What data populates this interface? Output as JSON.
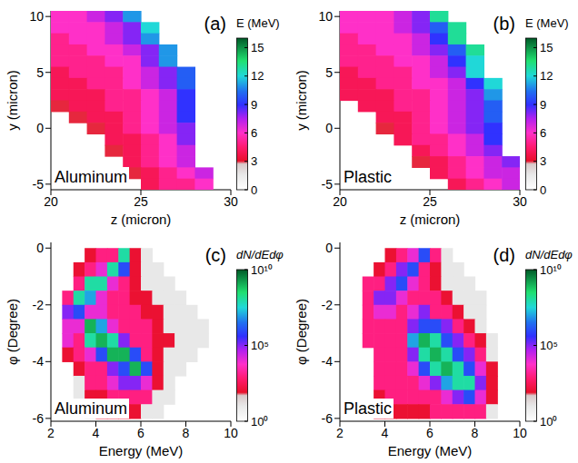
{
  "chart_data": [
    {
      "type": "heatmap",
      "panel_label": "(a)",
      "annotation": "Aluminum",
      "x_label": "z (micron)",
      "y_label": "y (micron)",
      "xlim": [
        20,
        30
      ],
      "xticks": [
        20,
        25,
        30
      ],
      "ylim": [
        -5.5,
        10.5
      ],
      "yticks": [
        10,
        5,
        0,
        -5
      ],
      "x": [
        20.5,
        21.5,
        22.5,
        23.5,
        24.5,
        25.5,
        26.5,
        27.5,
        28.5,
        29.5
      ],
      "y": [
        10,
        9,
        8,
        7,
        6,
        5,
        4,
        3,
        2,
        1,
        0,
        -1,
        -2,
        -3,
        -4,
        -5
      ],
      "values": [
        [
          6,
          6,
          7,
          8,
          11,
          null,
          null,
          null,
          null,
          null
        ],
        [
          6,
          6,
          6,
          7,
          8,
          12,
          null,
          null,
          null,
          null
        ],
        [
          5,
          6,
          6,
          7,
          8,
          11,
          null,
          null,
          null,
          null
        ],
        [
          5,
          5,
          6,
          6,
          7,
          8,
          11,
          null,
          null,
          null
        ],
        [
          5,
          5,
          5,
          6,
          6,
          8,
          11,
          null,
          null,
          null
        ],
        [
          4,
          5,
          5,
          5,
          6,
          7,
          8,
          10,
          null,
          null
        ],
        [
          4,
          4,
          5,
          5,
          6,
          7,
          8,
          10,
          null,
          null
        ],
        [
          4,
          4,
          4,
          5,
          5,
          6,
          7,
          9,
          null,
          null
        ],
        [
          3,
          4,
          4,
          5,
          5,
          6,
          7,
          9,
          null,
          null
        ],
        [
          null,
          3,
          4,
          4,
          5,
          6,
          7,
          9,
          null,
          null
        ],
        [
          null,
          null,
          3,
          4,
          5,
          6,
          7,
          8,
          null,
          null
        ],
        [
          null,
          null,
          null,
          4,
          4,
          5,
          6,
          8,
          null,
          null
        ],
        [
          null,
          null,
          null,
          3,
          4,
          5,
          6,
          7,
          null,
          null
        ],
        [
          null,
          null,
          null,
          null,
          4,
          5,
          6,
          7,
          null,
          null
        ],
        [
          null,
          null,
          null,
          null,
          3,
          4,
          5,
          6,
          7,
          null
        ],
        [
          null,
          null,
          null,
          null,
          null,
          4,
          5,
          5,
          6,
          null
        ]
      ],
      "colorbar": {
        "label": "E (MeV)",
        "range": [
          0,
          16
        ],
        "ticks": [
          0,
          3,
          6,
          9,
          12,
          15
        ]
      }
    },
    {
      "type": "heatmap",
      "panel_label": "(b)",
      "annotation": "Plastic",
      "x_label": "z (micron)",
      "y_label": "y (micron)",
      "xlim": [
        20,
        30
      ],
      "xticks": [
        20,
        25,
        30
      ],
      "ylim": [
        -5.5,
        10.5
      ],
      "yticks": [
        10,
        5,
        0,
        -5
      ],
      "x": [
        20.5,
        21.5,
        22.5,
        23.5,
        24.5,
        25.5,
        26.5,
        27.5,
        28.5,
        29.5
      ],
      "y": [
        10,
        9,
        8,
        7,
        6,
        5,
        4,
        3,
        2,
        1,
        0,
        -1,
        -2,
        -3,
        -4,
        -5
      ],
      "values": [
        [
          6,
          6,
          6,
          7,
          8,
          13,
          null,
          null,
          null,
          null
        ],
        [
          6,
          6,
          6,
          7,
          8,
          10,
          13,
          null,
          null,
          null
        ],
        [
          5,
          6,
          6,
          6,
          7,
          9,
          13,
          null,
          null,
          null
        ],
        [
          5,
          5,
          6,
          6,
          7,
          8,
          10,
          13,
          null,
          null
        ],
        [
          5,
          5,
          5,
          6,
          6,
          7,
          9,
          12,
          null,
          null
        ],
        [
          4,
          5,
          5,
          5,
          6,
          7,
          8,
          12,
          null,
          null
        ],
        [
          4,
          4,
          5,
          5,
          6,
          6,
          7,
          9,
          12,
          null
        ],
        [
          4,
          4,
          4,
          5,
          5,
          6,
          7,
          8,
          11,
          null
        ],
        [
          null,
          4,
          4,
          5,
          5,
          6,
          7,
          8,
          10,
          null
        ],
        [
          null,
          null,
          4,
          4,
          5,
          6,
          7,
          8,
          10,
          null
        ],
        [
          null,
          null,
          3,
          4,
          5,
          6,
          7,
          8,
          9,
          null
        ],
        [
          null,
          null,
          null,
          4,
          5,
          5,
          6,
          7,
          9,
          null
        ],
        [
          null,
          null,
          null,
          null,
          4,
          5,
          6,
          7,
          8,
          null
        ],
        [
          null,
          null,
          null,
          null,
          3,
          4,
          5,
          6,
          7,
          8
        ],
        [
          null,
          null,
          null,
          null,
          null,
          4,
          5,
          6,
          7,
          7
        ],
        [
          null,
          null,
          null,
          null,
          null,
          null,
          4,
          5,
          6,
          7
        ]
      ],
      "colorbar": {
        "label": "E (MeV)",
        "range": [
          0,
          16
        ],
        "ticks": [
          0,
          3,
          6,
          9,
          12,
          15
        ]
      }
    },
    {
      "type": "heatmap",
      "panel_label": "(c)",
      "annotation": "Aluminum",
      "x_label": "Energy (MeV)",
      "y_label": "φ (Degree)",
      "xlim": [
        2,
        10
      ],
      "xticks": [
        2,
        4,
        6,
        8,
        10
      ],
      "ylim": [
        -6.1,
        0.2
      ],
      "yticks": [
        0,
        -2,
        -4,
        -6
      ],
      "x": [
        2.25,
        2.75,
        3.25,
        3.75,
        4.25,
        4.75,
        5.25,
        5.75,
        6.25,
        6.75,
        7.25,
        7.75,
        8.25,
        8.75,
        9.25,
        9.75
      ],
      "y": [
        -0.25,
        -0.75,
        -1.25,
        -1.75,
        -2.25,
        -2.75,
        -3.25,
        -3.75,
        -4.25,
        -4.75,
        -5.25,
        -5.75
      ],
      "values": [
        [
          null,
          null,
          null,
          100.0,
          1000.0,
          1000.0,
          100000000.0,
          100.0,
          10.0,
          null,
          null,
          null,
          null,
          null,
          null,
          null
        ],
        [
          null,
          null,
          100.0,
          1000.0,
          10000.0,
          100000000.0,
          1000000.0,
          100.0,
          10.0,
          10.0,
          null,
          null,
          null,
          null,
          null,
          null
        ],
        [
          null,
          null,
          1000.0,
          100000000.0,
          100000000.0,
          10000.0,
          1000.0,
          100.0,
          10.0,
          10.0,
          10.0,
          null,
          null,
          null,
          null,
          null
        ],
        [
          null,
          1000.0,
          100000000.0,
          10000000.0,
          10000.0,
          1000.0,
          1000.0,
          100.0,
          100.0,
          10.0,
          10.0,
          10.0,
          null,
          null,
          null,
          null
        ],
        [
          null,
          100000.0,
          1000000.0,
          10000.0,
          10000.0,
          1000.0,
          1000.0,
          1000.0,
          100.0,
          100.0,
          10.0,
          10.0,
          10.0,
          null,
          null,
          null
        ],
        [
          null,
          10000.0,
          10000.0,
          1000000000.0,
          10000000.0,
          10000.0,
          1000.0,
          1000.0,
          1000.0,
          100.0,
          10.0,
          10.0,
          10.0,
          10.0,
          null,
          null
        ],
        [
          null,
          10000.0,
          1000.0,
          100000000.0,
          1000000000.0,
          100000000.0,
          100000.0,
          1000.0,
          1000.0,
          100.0,
          100.0,
          10.0,
          10.0,
          10.0,
          null,
          null
        ],
        [
          null,
          100.0,
          1000.0,
          10000.0,
          1000000.0,
          1000000000.0,
          1000000000.0,
          1000000.0,
          1000.0,
          100.0,
          10.0,
          10.0,
          10.0,
          null,
          null,
          null
        ],
        [
          null,
          null,
          100.0,
          1000.0,
          1000.0,
          100000.0,
          1000000.0,
          1000000000.0,
          1000000.0,
          100.0,
          10.0,
          10.0,
          null,
          null,
          null,
          null
        ],
        [
          null,
          null,
          10.0,
          1000.0,
          1000.0,
          10000.0,
          100000.0,
          100000.0,
          10000.0,
          100.0,
          10.0,
          null,
          null,
          null,
          null,
          null
        ],
        [
          null,
          null,
          10.0,
          100.0,
          100.0,
          1000.0,
          1000.0,
          1000.0,
          1000.0,
          10.0,
          10.0,
          null,
          null,
          null,
          null,
          null
        ],
        [
          null,
          null,
          null,
          10.0,
          100.0,
          100.0,
          100.0,
          100.0,
          10.0,
          10.0,
          null,
          null,
          null,
          null,
          null,
          null
        ]
      ],
      "colorbar": {
        "label": "dN/dEdφ",
        "range": [
          1,
          10000000000.0
        ],
        "log": true,
        "ticks": [
          {
            "value": 1,
            "label": "10⁰"
          },
          {
            "value": 100000.0,
            "label": "10⁵"
          },
          {
            "value": 10000000000.0,
            "label": "10¹⁰"
          }
        ]
      }
    },
    {
      "type": "heatmap",
      "panel_label": "(d)",
      "annotation": "Plastic",
      "x_label": "Energy (MeV)",
      "y_label": "φ (Degree)",
      "xlim": [
        2,
        10
      ],
      "xticks": [
        2,
        4,
        6,
        8,
        10
      ],
      "ylim": [
        -6.1,
        0.2
      ],
      "yticks": [
        0,
        -2,
        -4,
        -6
      ],
      "x": [
        2.25,
        2.75,
        3.25,
        3.75,
        4.25,
        4.75,
        5.25,
        5.75,
        6.25,
        6.75,
        7.25,
        7.75,
        8.25,
        8.75,
        9.25,
        9.75
      ],
      "y": [
        -0.25,
        -0.75,
        -1.25,
        -1.75,
        -2.25,
        -2.75,
        -3.25,
        -3.75,
        -4.25,
        -4.75,
        -5.25,
        -5.75
      ],
      "values": [
        [
          null,
          null,
          null,
          null,
          100.0,
          1000.0,
          10000.0,
          1000000.0,
          1000.0,
          10.0,
          null,
          null,
          null,
          null,
          null,
          null
        ],
        [
          null,
          null,
          null,
          100.0,
          1000.0,
          100000.0,
          1000000.0,
          1000.0,
          100.0,
          10.0,
          10.0,
          null,
          null,
          null,
          null,
          null
        ],
        [
          null,
          null,
          1000.0,
          1000.0,
          100000.0,
          1000000.0,
          10000.0,
          1000.0,
          100.0,
          10.0,
          10.0,
          10.0,
          null,
          null,
          null,
          null
        ],
        [
          null,
          null,
          1000.0,
          100000.0,
          100000.0,
          10000.0,
          1000.0,
          1000.0,
          1000.0,
          100.0,
          10.0,
          10.0,
          10.0,
          null,
          null,
          null
        ],
        [
          null,
          null,
          1000.0,
          10000.0,
          10000.0,
          1000.0,
          10000.0,
          100000.0,
          1000.0,
          1000.0,
          100.0,
          10.0,
          10.0,
          null,
          null,
          null
        ],
        [
          null,
          null,
          1000.0,
          1000.0,
          1000.0,
          1000.0,
          100000.0,
          1000000.0,
          1000000.0,
          100000.0,
          1000.0,
          100.0,
          10.0,
          null,
          null,
          null
        ],
        [
          null,
          null,
          1000.0,
          1000.0,
          1000.0,
          1000.0,
          10000000.0,
          1000000000.0,
          100000000.0,
          1000000.0,
          100000.0,
          1000.0,
          100.0,
          10.0,
          null,
          null
        ],
        [
          null,
          null,
          null,
          1000.0,
          1000.0,
          1000.0,
          100000.0,
          100000000.0,
          1000000000.0,
          100000000.0,
          1000000.0,
          100000.0,
          1000.0,
          10.0,
          null,
          null
        ],
        [
          null,
          null,
          null,
          1000.0,
          1000.0,
          1000.0,
          10000.0,
          1000000.0,
          100000000.0,
          1000000000.0,
          100000000.0,
          1000000.0,
          10000.0,
          100.0,
          null,
          null
        ],
        [
          null,
          null,
          null,
          1000.0,
          1000.0,
          1000.0,
          1000.0,
          10000.0,
          100000.0,
          10000000.0,
          100000000.0,
          100000000.0,
          100000.0,
          100.0,
          null,
          null
        ],
        [
          null,
          null,
          null,
          100.0,
          1000.0,
          1000.0,
          1000.0,
          1000.0,
          1000.0,
          10000.0,
          100000.0,
          1000000.0,
          10000.0,
          100.0,
          null,
          null
        ],
        [
          null,
          null,
          null,
          100.0,
          100.0,
          100.0,
          100.0,
          100.0,
          1000.0,
          1000.0,
          1000.0,
          1000.0,
          1000.0,
          10.0,
          null,
          null
        ]
      ],
      "colorbar": {
        "label": "dN/dEdφ",
        "range": [
          1,
          10000000000.0
        ],
        "log": true,
        "ticks": [
          {
            "value": 1,
            "label": "10⁰"
          },
          {
            "value": 100000.0,
            "label": "10⁵"
          },
          {
            "value": 10000000000.0,
            "label": "10¹⁰"
          }
        ]
      }
    }
  ]
}
